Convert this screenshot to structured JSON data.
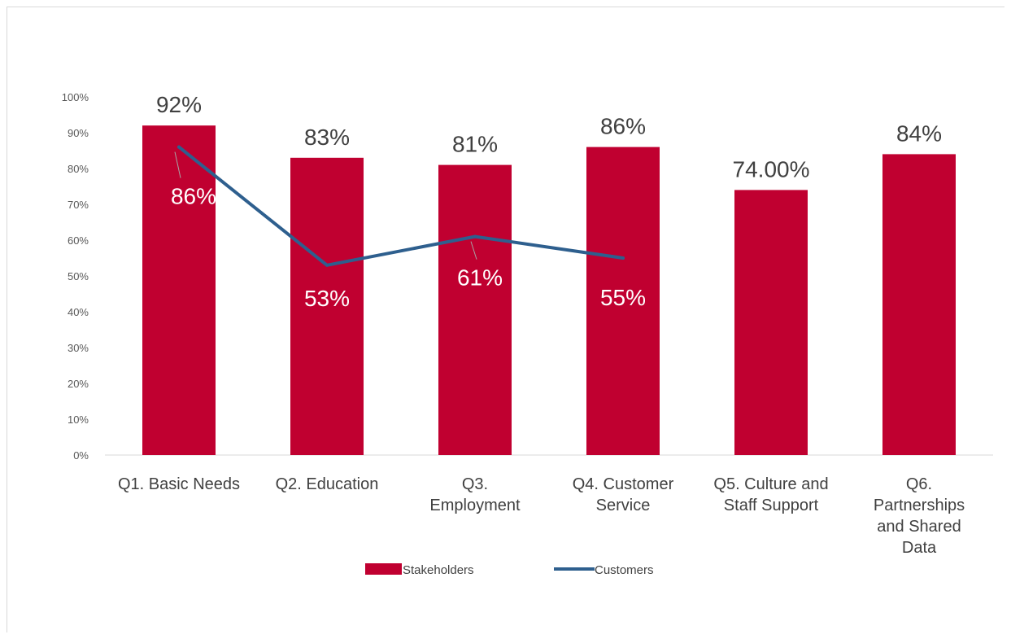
{
  "chart_data": {
    "type": "bar",
    "categories": [
      [
        "Q1. Basic Needs"
      ],
      [
        "Q2. Education"
      ],
      [
        "Q3.",
        "Employment"
      ],
      [
        "Q4. Customer",
        "Service"
      ],
      [
        "Q5. Culture and",
        "Staff Support"
      ],
      [
        "Q6.",
        "Partnerships",
        "and Shared",
        "Data"
      ]
    ],
    "ylim": [
      0,
      100
    ],
    "yticks": [
      "0%",
      "10%",
      "20%",
      "30%",
      "40%",
      "50%",
      "60%",
      "70%",
      "80%",
      "90%",
      "100%"
    ],
    "grid": false,
    "legend_position": "bottom",
    "series": [
      {
        "name": "Stakeholders",
        "kind": "bar",
        "color": "#c00030",
        "values": [
          92,
          83,
          81,
          86,
          74,
          84
        ],
        "labels": [
          "92%",
          "83%",
          "81%",
          "86%",
          "74.00%",
          "84%"
        ]
      },
      {
        "name": "Customers",
        "kind": "line",
        "color": "#2e5f8e",
        "values": [
          86,
          53,
          61,
          55,
          null,
          null
        ],
        "labels": [
          "86%",
          "53%",
          "61%",
          "55%",
          "",
          ""
        ]
      }
    ]
  }
}
